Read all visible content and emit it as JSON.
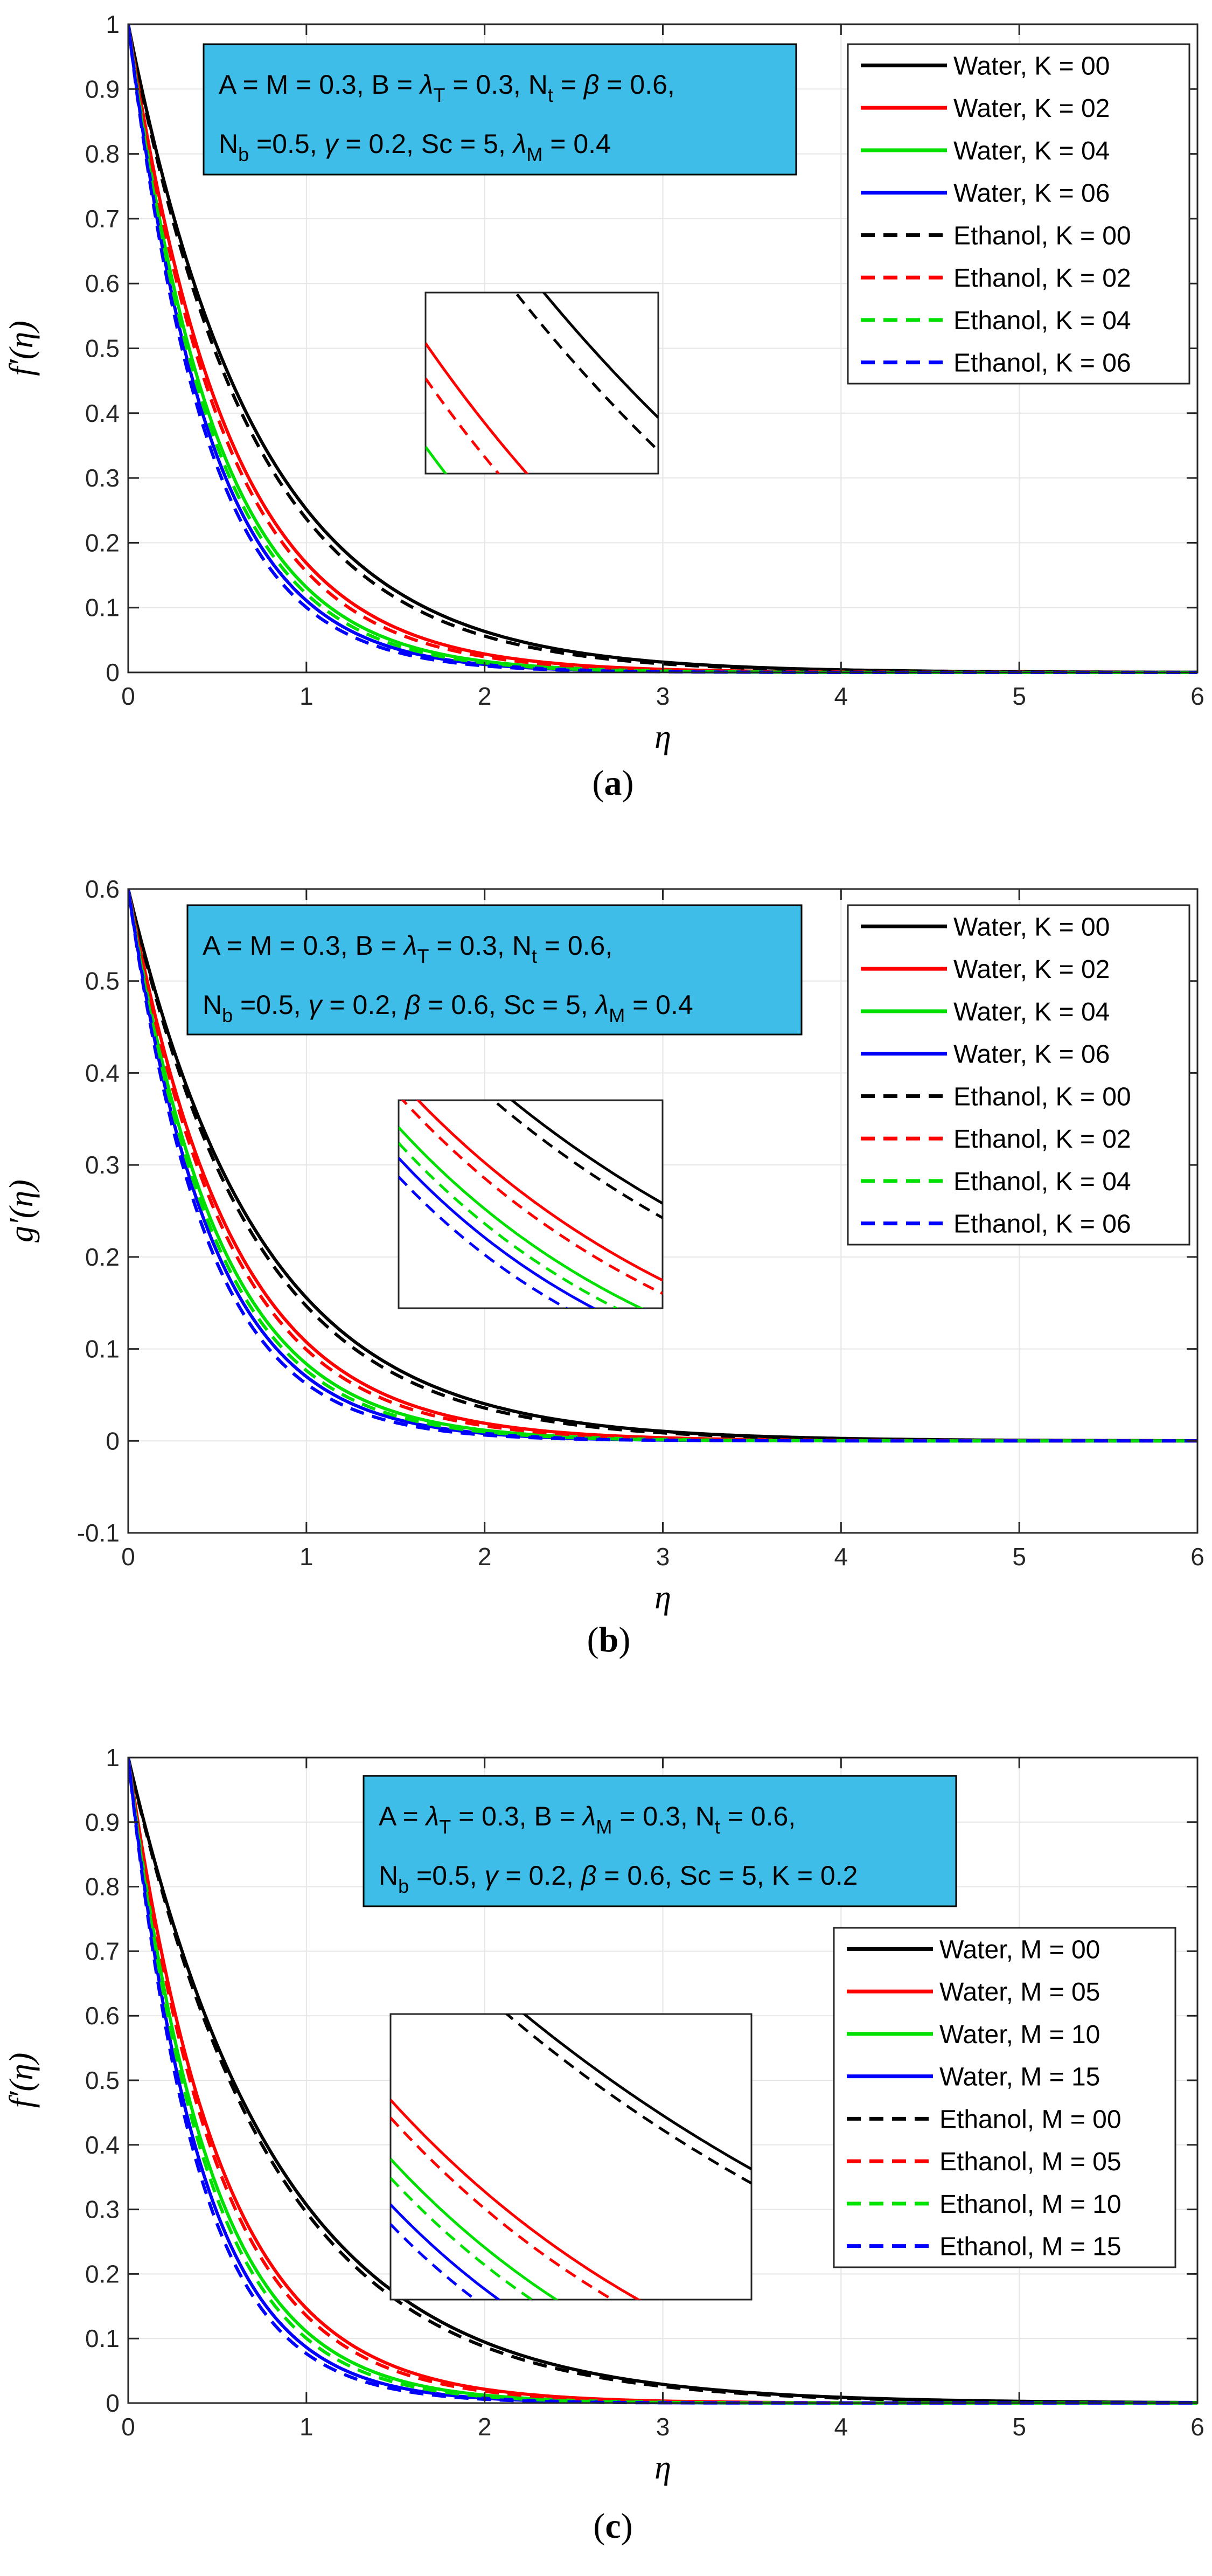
{
  "chart_data": [
    {
      "type": "line",
      "panel_label": "a",
      "ylabel": "f′(η)",
      "xlabel": "η",
      "xlim": [
        0,
        6
      ],
      "ylim": [
        0,
        1
      ],
      "xticks": [
        "0",
        "1",
        "2",
        "3",
        "4",
        "5",
        "6"
      ],
      "yticks": [
        "0",
        "0.1",
        "0.2",
        "0.3",
        "0.4",
        "0.5",
        "0.6",
        "0.7",
        "0.8",
        "0.9",
        "1"
      ],
      "grid": true,
      "legend_position": "top-right",
      "annotation_lines": [
        "A = M = 0.3, B = λT = 0.3, Nt = β = 0.6,",
        "Nb =0.5, γ = 0.2, Sc = 5, λM = 0.4"
      ],
      "series": [
        {
          "name": "Water, K = 00",
          "style": "solid",
          "color": "#000000",
          "start": 1.0,
          "decay": 1.38
        },
        {
          "name": "Water, K = 02",
          "style": "solid",
          "color": "#ff0000",
          "start": 1.0,
          "decay": 1.78
        },
        {
          "name": "Water, K = 04",
          "style": "solid",
          "color": "#00e000",
          "start": 1.0,
          "decay": 2.03
        },
        {
          "name": "Water, K = 06",
          "style": "solid",
          "color": "#0000ff",
          "start": 1.0,
          "decay": 2.2
        },
        {
          "name": "Ethanol, K = 00",
          "style": "dashed",
          "color": "#000000",
          "start": 1.0,
          "decay": 1.44
        },
        {
          "name": "Ethanol, K = 02",
          "style": "dashed",
          "color": "#ff0000",
          "start": 1.0,
          "decay": 1.86
        },
        {
          "name": "Ethanol, K = 04",
          "style": "dashed",
          "color": "#00e000",
          "start": 1.0,
          "decay": 2.11
        },
        {
          "name": "Ethanol, K = 06",
          "style": "dashed",
          "color": "#0000ff",
          "start": 1.0,
          "decay": 2.3
        }
      ]
    },
    {
      "type": "line",
      "panel_label": "b",
      "ylabel": "g′(η)",
      "xlabel": "η",
      "xlim": [
        0,
        6
      ],
      "ylim": [
        -0.1,
        0.6
      ],
      "xticks": [
        "0",
        "1",
        "2",
        "3",
        "4",
        "5",
        "6"
      ],
      "yticks": [
        "-0.1",
        "0",
        "0.1",
        "0.2",
        "0.3",
        "0.4",
        "0.5",
        "0.6"
      ],
      "grid": true,
      "legend_position": "top-right",
      "annotation_lines": [
        "A = M = 0.3, B = λT = 0.3, Nt = 0.6,",
        "Nb =0.5, γ = 0.2, β = 0.6, Sc = 5, λM = 0.4"
      ],
      "series": [
        {
          "name": "Water, K = 00",
          "style": "solid",
          "color": "#000000",
          "start": 0.6,
          "decay": 1.35
        },
        {
          "name": "Water, K = 02",
          "style": "solid",
          "color": "#ff0000",
          "start": 0.6,
          "decay": 1.72
        },
        {
          "name": "Water, K = 04",
          "style": "solid",
          "color": "#00e000",
          "start": 0.6,
          "decay": 1.97
        },
        {
          "name": "Water, K = 06",
          "style": "solid",
          "color": "#0000ff",
          "start": 0.6,
          "decay": 2.15
        },
        {
          "name": "Ethanol, K = 00",
          "style": "dashed",
          "color": "#000000",
          "start": 0.6,
          "decay": 1.41
        },
        {
          "name": "Ethanol, K = 02",
          "style": "dashed",
          "color": "#ff0000",
          "start": 0.6,
          "decay": 1.8
        },
        {
          "name": "Ethanol, K = 04",
          "style": "dashed",
          "color": "#00e000",
          "start": 0.6,
          "decay": 2.06
        },
        {
          "name": "Ethanol, K = 06",
          "style": "dashed",
          "color": "#0000ff",
          "start": 0.6,
          "decay": 2.27
        }
      ]
    },
    {
      "type": "line",
      "panel_label": "c",
      "ylabel": "f′(η)",
      "xlabel": "η",
      "xlim": [
        0,
        6
      ],
      "ylim": [
        0,
        1
      ],
      "xticks": [
        "0",
        "1",
        "2",
        "3",
        "4",
        "5",
        "6"
      ],
      "yticks": [
        "0",
        "0.1",
        "0.2",
        "0.3",
        "0.4",
        "0.5",
        "0.6",
        "0.7",
        "0.8",
        "0.9",
        "1"
      ],
      "grid": true,
      "legend_position": "middle-right",
      "annotation_lines": [
        "A = λT = 0.3, B = λM = 0.3, Nt = 0.6,",
        "Nb =0.5, γ = 0.2, β = 0.6, Sc = 5, K = 0.2"
      ],
      "series": [
        {
          "name": "Water, M = 00",
          "style": "solid",
          "color": "#000000",
          "start": 1.0,
          "decay": 1.18
        },
        {
          "name": "Water, M = 05",
          "style": "solid",
          "color": "#ff0000",
          "start": 1.0,
          "decay": 1.92
        },
        {
          "name": "Water, M = 10",
          "style": "solid",
          "color": "#00e000",
          "start": 1.0,
          "decay": 2.2
        },
        {
          "name": "Water, M = 15",
          "style": "solid",
          "color": "#0000ff",
          "start": 1.0,
          "decay": 2.45
        },
        {
          "name": "Ethanol, M = 00",
          "style": "dashed",
          "color": "#000000",
          "start": 1.0,
          "decay": 1.22
        },
        {
          "name": "Ethanol, M = 05",
          "style": "dashed",
          "color": "#ff0000",
          "start": 1.0,
          "decay": 2.0
        },
        {
          "name": "Ethanol, M = 10",
          "style": "dashed",
          "color": "#00e000",
          "start": 1.0,
          "decay": 2.3
        },
        {
          "name": "Ethanol, M = 15",
          "style": "dashed",
          "color": "#0000ff",
          "start": 1.0,
          "decay": 2.57
        }
      ]
    }
  ]
}
